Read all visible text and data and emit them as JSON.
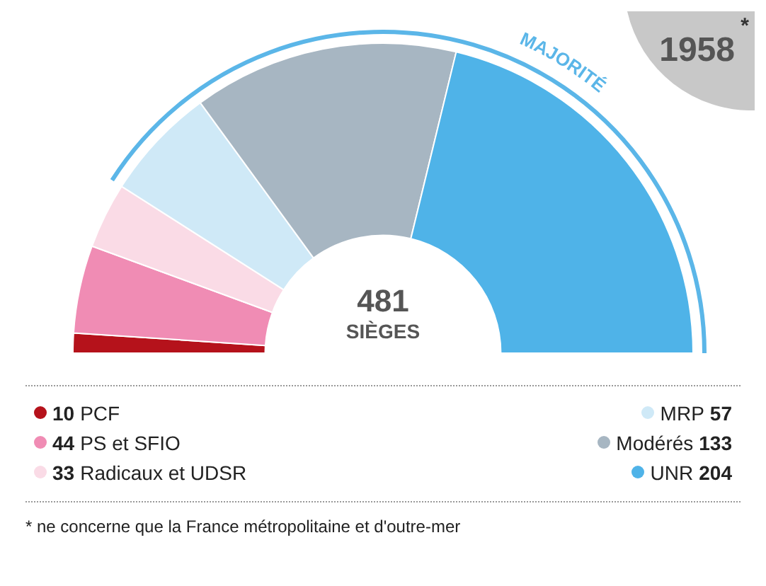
{
  "chart_data": {
    "type": "donut",
    "title": "1958",
    "categories": [
      "PCF",
      "PS et SFIO",
      "Radicaux et UDSR",
      "MRP",
      "Modérés",
      "UNR"
    ],
    "values": [
      10,
      44,
      33,
      57,
      133,
      204
    ],
    "colors": [
      "#b5121b",
      "#f08cb4",
      "#fadbe6",
      "#cfe9f7",
      "#a7b6c2",
      "#4fb3e8"
    ],
    "legend": "bottom",
    "data_labels": true,
    "annotations": [
      "481",
      "SIÈGES",
      "MAJORITÉ",
      "*",
      "* ne concerne que la France métropolitaine et d'outre-mer"
    ]
  }
}
